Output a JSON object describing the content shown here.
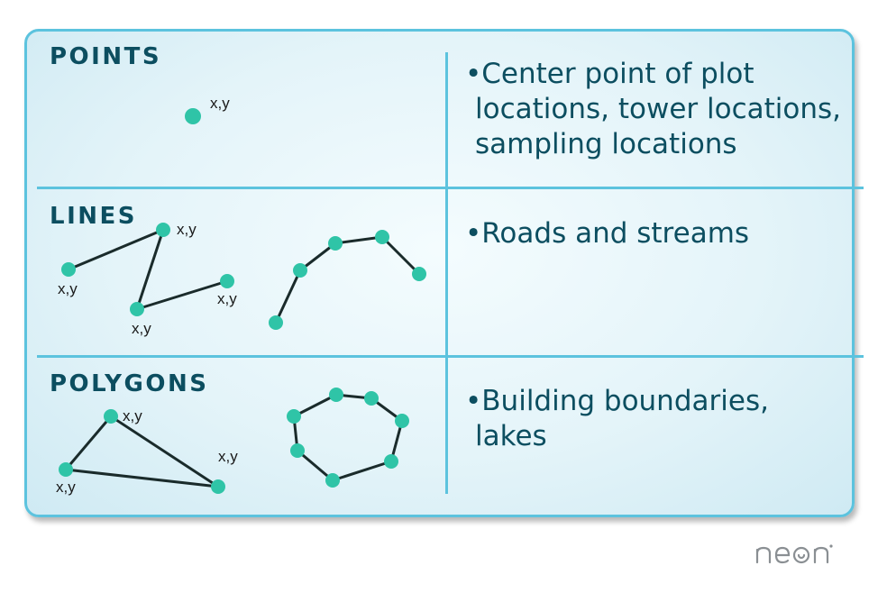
{
  "rows": [
    {
      "title": "POINTS",
      "description_lines": [
        "•Center point of plot",
        "locations, tower locations,",
        "sampling locations"
      ],
      "coord_labels": [
        "x,y"
      ]
    },
    {
      "title": "LINES",
      "description_lines": [
        "•Roads and streams"
      ],
      "coord_labels": [
        "x,y",
        "x,y",
        "x,y",
        "x,y"
      ]
    },
    {
      "title": "POLYGONS",
      "description_lines": [
        "•Building boundaries,",
        "lakes"
      ],
      "coord_labels": [
        "x,y",
        "x,y",
        "x,y"
      ]
    }
  ],
  "logo": {
    "text": "neon"
  },
  "colors": {
    "border": "#5cc3de",
    "vertex": "#2fc4a7",
    "text": "#0c4e60",
    "edge": "#1a2b2b"
  }
}
